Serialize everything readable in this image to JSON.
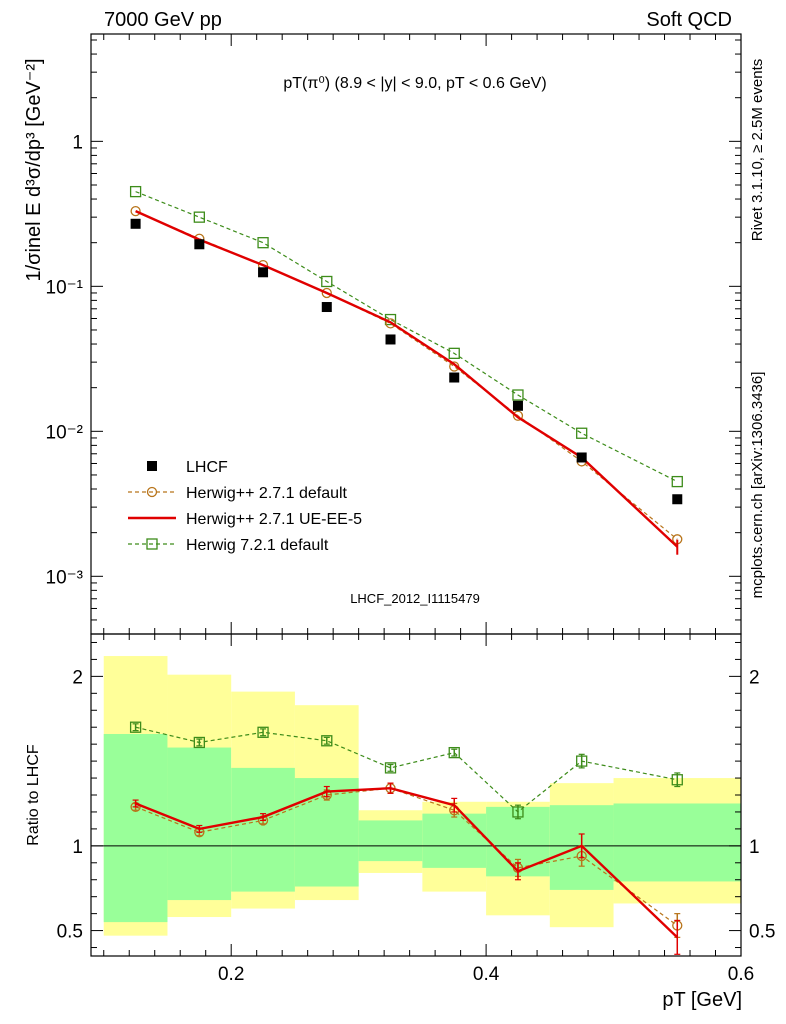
{
  "header": {
    "left": "7000 GeV pp",
    "right": "Soft QCD"
  },
  "side_labels": {
    "rivet": "Rivet 3.1.10, ≥ 2.5M events",
    "mcplots": "mcplots.cern.ch [arXiv:1306.3436]"
  },
  "watermark": "LHCF_2012_I1115479",
  "colors": {
    "data": "#000000",
    "herwig_default": "#b8741a",
    "herwig_ue": "#e00000",
    "herwig7": "#3d8c1a",
    "band_inner": "#99ff99",
    "band_outer": "#ffff99"
  },
  "chart_data": [
    {
      "type": "scatter",
      "title": "pT(π⁰) (8.9 < |y| < 9.0, pT < 0.6 GeV)",
      "xlabel": "",
      "ylabel": "1/σinel E d³σ/dp³ [GeV⁻²]",
      "yscale": "log",
      "xlim": [
        0.09,
        0.6
      ],
      "ylim": [
        0.0004,
        5.5
      ],
      "yticks": [
        {
          "value": 1,
          "label": "1"
        },
        {
          "value": 0.1,
          "label": "10⁻¹"
        },
        {
          "value": 0.01,
          "label": "10⁻²"
        },
        {
          "value": 0.001,
          "label": "10⁻³"
        }
      ],
      "x": [
        0.125,
        0.175,
        0.225,
        0.275,
        0.325,
        0.375,
        0.425,
        0.475,
        0.55
      ],
      "legend_position": "bottom-left",
      "series": [
        {
          "name": "LHCF",
          "key": "data",
          "marker": "square-filled",
          "values": [
            0.27,
            0.195,
            0.125,
            0.072,
            0.043,
            0.0235,
            0.015,
            0.0066,
            0.0034
          ]
        },
        {
          "name": "Herwig++ 2.7.1 default",
          "key": "herwig_default",
          "marker": "circle-open",
          "dashed": true,
          "values": [
            0.33,
            0.213,
            0.14,
            0.09,
            0.0555,
            0.028,
            0.0128,
            0.0062,
            0.0018
          ]
        },
        {
          "name": "Herwig++ 2.7.1 UE-EE-5",
          "key": "herwig_ue",
          "marker": "none",
          "dashed": false,
          "values": [
            0.33,
            0.21,
            0.14,
            0.09,
            0.0565,
            0.029,
            0.0125,
            0.0066,
            0.0016
          ]
        },
        {
          "name": "Herwig 7.2.1 default",
          "key": "herwig7",
          "marker": "square-open",
          "dashed": true,
          "values": [
            0.45,
            0.3,
            0.2,
            0.108,
            0.059,
            0.0345,
            0.0178,
            0.0097,
            0.0045
          ]
        }
      ]
    },
    {
      "type": "line",
      "xlabel": "pT [GeV]",
      "ylabel": "Ratio to LHCF",
      "xlim": [
        0.09,
        0.6
      ],
      "ylim": [
        0.35,
        2.25
      ],
      "xticks": [
        {
          "value": 0.2,
          "label": "0.2"
        },
        {
          "value": 0.4,
          "label": "0.4"
        },
        {
          "value": 0.6,
          "label": "0.6"
        }
      ],
      "yticks": [
        {
          "value": 2,
          "label": "2"
        },
        {
          "value": 1,
          "label": "1"
        },
        {
          "value": 0.5,
          "label": "0.5"
        }
      ],
      "x": [
        0.125,
        0.175,
        0.225,
        0.275,
        0.325,
        0.375,
        0.425,
        0.475,
        0.55
      ],
      "bands": {
        "edges": [
          0.1,
          0.15,
          0.2,
          0.25,
          0.3,
          0.35,
          0.4,
          0.45,
          0.5,
          0.6
        ],
        "outer_low": [
          0.47,
          0.58,
          0.63,
          0.68,
          0.84,
          0.73,
          0.59,
          0.52,
          0.66
        ],
        "outer_high": [
          2.12,
          2.01,
          1.91,
          1.83,
          1.21,
          1.26,
          1.26,
          1.37,
          1.4
        ],
        "inner_low": [
          0.55,
          0.68,
          0.73,
          0.76,
          0.91,
          0.87,
          0.82,
          0.74,
          0.79
        ],
        "inner_high": [
          1.66,
          1.58,
          1.46,
          1.4,
          1.15,
          1.19,
          1.23,
          1.24,
          1.25
        ]
      },
      "series": [
        {
          "name": "Herwig++ 2.7.1 default",
          "key": "herwig_default",
          "values": [
            1.23,
            1.08,
            1.15,
            1.3,
            1.34,
            1.21,
            0.87,
            0.94,
            0.53
          ],
          "errors": [
            0.02,
            0.02,
            0.02,
            0.03,
            0.03,
            0.04,
            0.05,
            0.06,
            0.07
          ]
        },
        {
          "name": "Herwig++ 2.7.1 UE-EE-5",
          "key": "herwig_ue",
          "values": [
            1.25,
            1.1,
            1.17,
            1.32,
            1.34,
            1.24,
            0.85,
            1.0,
            0.46
          ],
          "errors": [
            0.02,
            0.02,
            0.02,
            0.03,
            0.03,
            0.04,
            0.05,
            0.07,
            0.1
          ]
        },
        {
          "name": "Herwig 7.2.1 default",
          "key": "herwig7",
          "values": [
            1.7,
            1.61,
            1.67,
            1.62,
            1.46,
            1.55,
            1.2,
            1.5,
            1.39
          ],
          "errors": [
            0.02,
            0.02,
            0.02,
            0.02,
            0.02,
            0.02,
            0.04,
            0.04,
            0.04
          ]
        }
      ]
    }
  ]
}
